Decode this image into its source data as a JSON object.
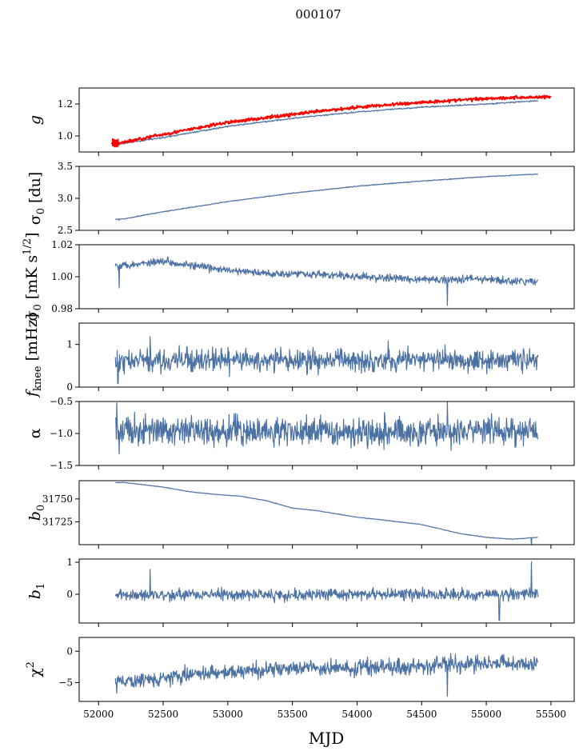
{
  "figure": {
    "suptitle": "000107",
    "xlabel": "MJD",
    "series_color": "#4c72a4",
    "overlay_color": "#ff0000"
  },
  "chart_data": [
    {
      "type": "line",
      "ylabel_base": "g",
      "ylabel_sub": "",
      "ylabel_sup": "",
      "ylabel_unit": "",
      "xlim": [
        51850,
        55680
      ],
      "ylim": [
        0.9,
        1.3
      ],
      "xticks": [
        52000,
        52500,
        53000,
        53500,
        54000,
        54500,
        55000,
        55500
      ],
      "yticks": [
        1.0,
        1.2
      ],
      "ytick_labels": [
        "1.0",
        "1.2"
      ],
      "series": [
        {
          "style": "blue",
          "points": [
            [
              52130,
              0.945
            ],
            [
              52200,
              0.955
            ],
            [
              52500,
              0.99
            ],
            [
              53000,
              1.06
            ],
            [
              53500,
              1.11
            ],
            [
              54000,
              1.15
            ],
            [
              54500,
              1.18
            ],
            [
              55000,
              1.2
            ],
            [
              55400,
              1.22
            ]
          ]
        },
        {
          "style": "red",
          "points": [
            [
              52100,
              0.95
            ],
            [
              52200,
              0.962
            ],
            [
              52500,
              1.01
            ],
            [
              53000,
              1.085
            ],
            [
              53500,
              1.135
            ],
            [
              54000,
              1.18
            ],
            [
              54500,
              1.21
            ],
            [
              55000,
              1.235
            ],
            [
              55500,
              1.245
            ]
          ]
        }
      ]
    },
    {
      "type": "line",
      "ylabel_base": "σ",
      "ylabel_sub": "0",
      "ylabel_sup": "",
      "ylabel_unit": "[du]",
      "xlim": [
        51850,
        55680
      ],
      "ylim": [
        2.5,
        3.5
      ],
      "xticks": [
        52000,
        52500,
        53000,
        53500,
        54000,
        54500,
        55000,
        55500
      ],
      "yticks": [
        2.5,
        3.0,
        3.5
      ],
      "ytick_labels": [
        "2.5",
        "3.0",
        "3.5"
      ],
      "series": [
        {
          "style": "blue",
          "points": [
            [
              52130,
              2.67
            ],
            [
              52200,
              2.68
            ],
            [
              52500,
              2.79
            ],
            [
              53000,
              2.95
            ],
            [
              53500,
              3.08
            ],
            [
              54000,
              3.19
            ],
            [
              54500,
              3.27
            ],
            [
              55000,
              3.34
            ],
            [
              55400,
              3.38
            ]
          ]
        }
      ]
    },
    {
      "type": "line",
      "ylabel_base": "σ",
      "ylabel_sub": "0",
      "ylabel_sup": "1/2",
      "ylabel_unit": "[mK s",
      "xlim": [
        51850,
        55680
      ],
      "ylim": [
        0.98,
        1.02
      ],
      "xticks": [
        52000,
        52500,
        53000,
        53500,
        54000,
        54500,
        55000,
        55500
      ],
      "yticks": [
        0.98,
        1.0,
        1.02
      ],
      "ytick_labels": [
        "0.98",
        "1.00",
        "1.02"
      ],
      "series": [
        {
          "style": "blue",
          "points": [
            [
              52130,
              1.007
            ],
            [
              52300,
              1.008
            ],
            [
              52500,
              1.01
            ],
            [
              52800,
              1.006
            ],
            [
              53000,
              1.004
            ],
            [
              53300,
              1.002
            ],
            [
              53600,
              1.002
            ],
            [
              54000,
              1.0
            ],
            [
              54300,
              0.999
            ],
            [
              54600,
              0.998
            ],
            [
              54900,
              0.999
            ],
            [
              55200,
              0.997
            ],
            [
              55400,
              0.997
            ]
          ]
        }
      ]
    },
    {
      "type": "line",
      "ylabel_base": "f",
      "ylabel_sub": "knee",
      "ylabel_sup": "",
      "ylabel_unit": "[mHz]",
      "xlim": [
        51850,
        55680
      ],
      "ylim": [
        0.0,
        1.5
      ],
      "xticks": [
        52000,
        52500,
        53000,
        53500,
        54000,
        54500,
        55000,
        55500
      ],
      "yticks": [
        0,
        1
      ],
      "ytick_labels": [
        "0",
        "1"
      ],
      "series": [
        {
          "style": "blue",
          "points": [
            [
              52130,
              0.6
            ],
            [
              52500,
              0.62
            ],
            [
              53000,
              0.63
            ],
            [
              53500,
              0.62
            ],
            [
              54000,
              0.64
            ],
            [
              54500,
              0.64
            ],
            [
              55000,
              0.64
            ],
            [
              55400,
              0.65
            ]
          ]
        }
      ]
    },
    {
      "type": "line",
      "ylabel_base": "α",
      "ylabel_sub": "",
      "ylabel_sup": "",
      "ylabel_unit": "",
      "xlim": [
        51850,
        55680
      ],
      "ylim": [
        -1.5,
        -0.5
      ],
      "xticks": [
        52000,
        52500,
        53000,
        53500,
        54000,
        54500,
        55000,
        55500
      ],
      "yticks": [
        -1.5,
        -1.0,
        -0.5
      ],
      "ytick_labels": [
        "−1.5",
        "−1.0",
        "−0.5"
      ],
      "series": [
        {
          "style": "blue",
          "points": [
            [
              52130,
              -0.95
            ],
            [
              52500,
              -0.96
            ],
            [
              53000,
              -0.96
            ],
            [
              53500,
              -0.97
            ],
            [
              54000,
              -0.96
            ],
            [
              54500,
              -0.97
            ],
            [
              55000,
              -0.96
            ],
            [
              55400,
              -0.97
            ]
          ]
        }
      ]
    },
    {
      "type": "line",
      "ylabel_base": "b",
      "ylabel_sub": "0",
      "ylabel_sup": "",
      "ylabel_unit": "",
      "xlim": [
        51850,
        55680
      ],
      "ylim": [
        31700,
        31770
      ],
      "xticks": [
        52000,
        52500,
        53000,
        53500,
        54000,
        54500,
        55000,
        55500
      ],
      "yticks": [
        31725,
        31750
      ],
      "ytick_labels": [
        "31725",
        "31750"
      ],
      "series": [
        {
          "style": "blue",
          "points": [
            [
              52130,
              31768
            ],
            [
              52200,
              31768
            ],
            [
              52500,
              31763
            ],
            [
              52700,
              31758
            ],
            [
              52900,
              31755
            ],
            [
              53100,
              31753
            ],
            [
              53300,
              31748
            ],
            [
              53500,
              31740
            ],
            [
              53700,
              31737
            ],
            [
              54000,
              31730
            ],
            [
              54200,
              31727
            ],
            [
              54500,
              31722
            ],
            [
              54800,
              31712
            ],
            [
              55000,
              31708
            ],
            [
              55200,
              31706
            ],
            [
              55400,
              31708
            ]
          ]
        }
      ]
    },
    {
      "type": "line",
      "ylabel_base": "b",
      "ylabel_sub": "1",
      "ylabel_sup": "",
      "ylabel_unit": "",
      "xlim": [
        51850,
        55680
      ],
      "ylim": [
        -0.9,
        1.1
      ],
      "xticks": [
        52000,
        52500,
        53000,
        53500,
        54000,
        54500,
        55000,
        55500
      ],
      "yticks": [
        0,
        1
      ],
      "ytick_labels": [
        "0",
        "1"
      ],
      "series": [
        {
          "style": "blue",
          "points": [
            [
              52130,
              0.0
            ],
            [
              52500,
              -0.02
            ],
            [
              53000,
              0.0
            ],
            [
              53500,
              -0.02
            ],
            [
              54000,
              0.0
            ],
            [
              54500,
              -0.01
            ],
            [
              55000,
              0.0
            ],
            [
              55400,
              0.0
            ]
          ]
        }
      ]
    },
    {
      "type": "line",
      "ylabel_base": "χ",
      "ylabel_sub": "",
      "ylabel_sup": "2",
      "ylabel_unit": "",
      "xlim": [
        51850,
        55680
      ],
      "ylim": [
        -8,
        2.2
      ],
      "xticks": [
        52000,
        52500,
        53000,
        53500,
        54000,
        54500,
        55000,
        55500
      ],
      "yticks": [
        -5,
        0
      ],
      "ytick_labels": [
        "−5",
        "0"
      ],
      "series": [
        {
          "style": "blue",
          "points": [
            [
              52130,
              -5.0
            ],
            [
              52500,
              -4.2
            ],
            [
              53000,
              -3.3
            ],
            [
              53500,
              -2.8
            ],
            [
              54000,
              -2.6
            ],
            [
              54500,
              -2.3
            ],
            [
              55000,
              -1.8
            ],
            [
              55400,
              -2.0
            ]
          ]
        }
      ]
    }
  ]
}
